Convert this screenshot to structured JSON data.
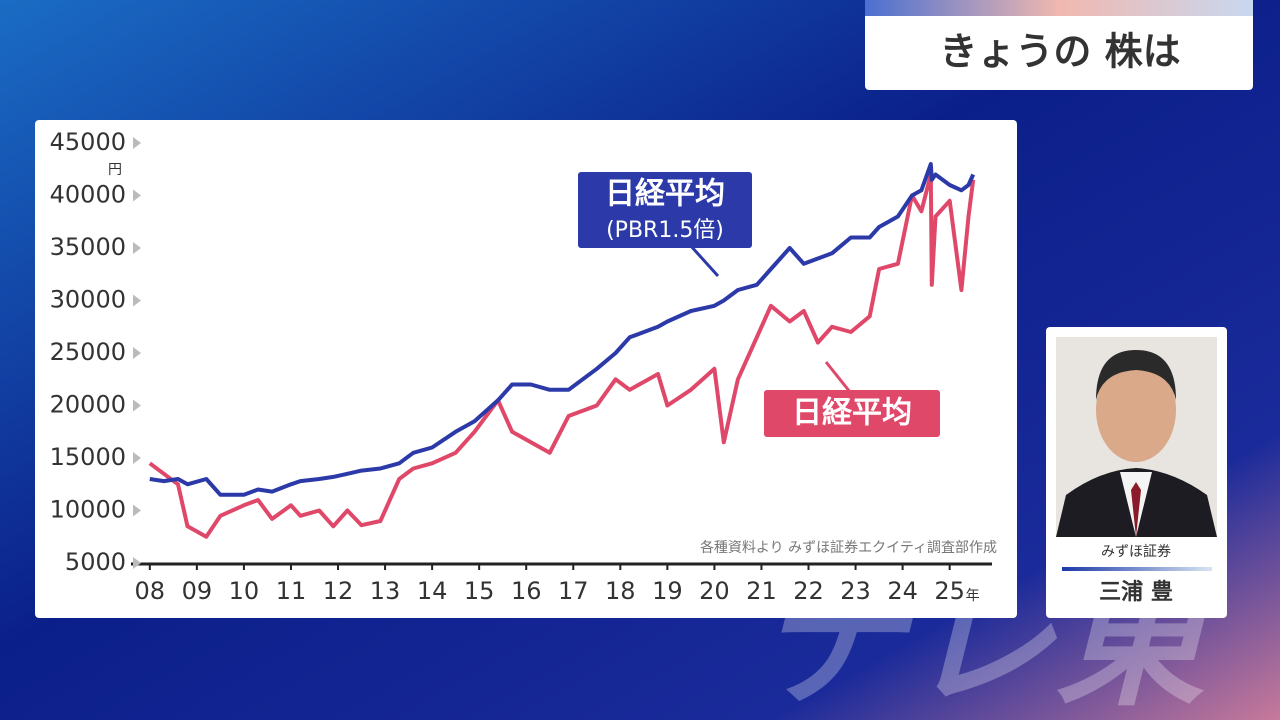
{
  "header": {
    "title": "きょうの 株は"
  },
  "chart_data": {
    "type": "line",
    "x": [
      2008.0,
      2008.3,
      2008.6,
      2008.8,
      2009.2,
      2009.5,
      2010.0,
      2010.3,
      2010.6,
      2011.0,
      2011.2,
      2011.6,
      2011.9,
      2012.2,
      2012.5,
      2012.9,
      2013.3,
      2013.6,
      2014.0,
      2014.5,
      2014.9,
      2015.4,
      2015.7,
      2016.1,
      2016.5,
      2016.9,
      2017.5,
      2017.9,
      2018.2,
      2018.8,
      2019.0,
      2019.5,
      2020.0,
      2020.2,
      2020.5,
      2020.9,
      2021.2,
      2021.6,
      2021.9,
      2022.2,
      2022.5,
      2022.9,
      2023.3,
      2023.5,
      2023.9,
      2024.2,
      2024.4,
      2024.6,
      2024.62,
      2024.7,
      2025.0,
      2025.25,
      2025.4,
      2025.5
    ],
    "series": [
      {
        "name": "日経平均",
        "subname": "(PBR1.5倍)",
        "color": "#2b3aa8",
        "values": [
          13000,
          12800,
          13000,
          12500,
          13000,
          11500,
          11500,
          12000,
          11800,
          12500,
          12800,
          13000,
          13200,
          13500,
          13800,
          14000,
          14500,
          15500,
          16000,
          17500,
          18500,
          20500,
          22000,
          22000,
          21500,
          21500,
          23500,
          25000,
          26500,
          27500,
          28000,
          29000,
          29500,
          30000,
          31000,
          31500,
          33000,
          35000,
          33500,
          34000,
          34500,
          36000,
          36000,
          37000,
          38000,
          40000,
          40500,
          43000,
          41500,
          42000,
          41000,
          40500,
          41000,
          42000
        ]
      },
      {
        "name": "日経平均",
        "color": "#e0486a",
        "values": [
          14500,
          13500,
          12500,
          8500,
          7500,
          9500,
          10500,
          11000,
          9200,
          10500,
          9500,
          10000,
          8500,
          10000,
          8600,
          9000,
          13000,
          14000,
          14500,
          15500,
          17500,
          20500,
          17500,
          16500,
          15500,
          19000,
          20000,
          22500,
          21500,
          23000,
          20000,
          21500,
          23500,
          16500,
          22500,
          26500,
          29500,
          28000,
          29000,
          26000,
          27500,
          27000,
          28500,
          33000,
          33500,
          40000,
          38500,
          42000,
          31500,
          38000,
          39500,
          31000,
          38000,
          41500
        ]
      }
    ],
    "xlim": [
      2007.6,
      2025.9
    ],
    "xticks": [
      {
        "value": 2008,
        "label": "08"
      },
      {
        "value": 2009,
        "label": "09"
      },
      {
        "value": 2010,
        "label": "10"
      },
      {
        "value": 2011,
        "label": "11"
      },
      {
        "value": 2012,
        "label": "12"
      },
      {
        "value": 2013,
        "label": "13"
      },
      {
        "value": 2014,
        "label": "14"
      },
      {
        "value": 2015,
        "label": "15"
      },
      {
        "value": 2016,
        "label": "16"
      },
      {
        "value": 2017,
        "label": "17"
      },
      {
        "value": 2018,
        "label": "18"
      },
      {
        "value": 2019,
        "label": "19"
      },
      {
        "value": 2020,
        "label": "20"
      },
      {
        "value": 2021,
        "label": "21"
      },
      {
        "value": 2022,
        "label": "22"
      },
      {
        "value": 2023,
        "label": "23"
      },
      {
        "value": 2024,
        "label": "24"
      },
      {
        "value": 2025,
        "label": "25"
      }
    ],
    "x_unit": "年",
    "ylim": [
      5000,
      45000
    ],
    "yticks": [
      5000,
      10000,
      15000,
      20000,
      25000,
      30000,
      35000,
      40000,
      45000
    ],
    "y_unit": "円",
    "source": "各種資料より みずほ証券エクイティ調査部作成"
  },
  "person": {
    "company": "みずほ証券",
    "name": "三浦 豊"
  },
  "watermark": "テレ東"
}
